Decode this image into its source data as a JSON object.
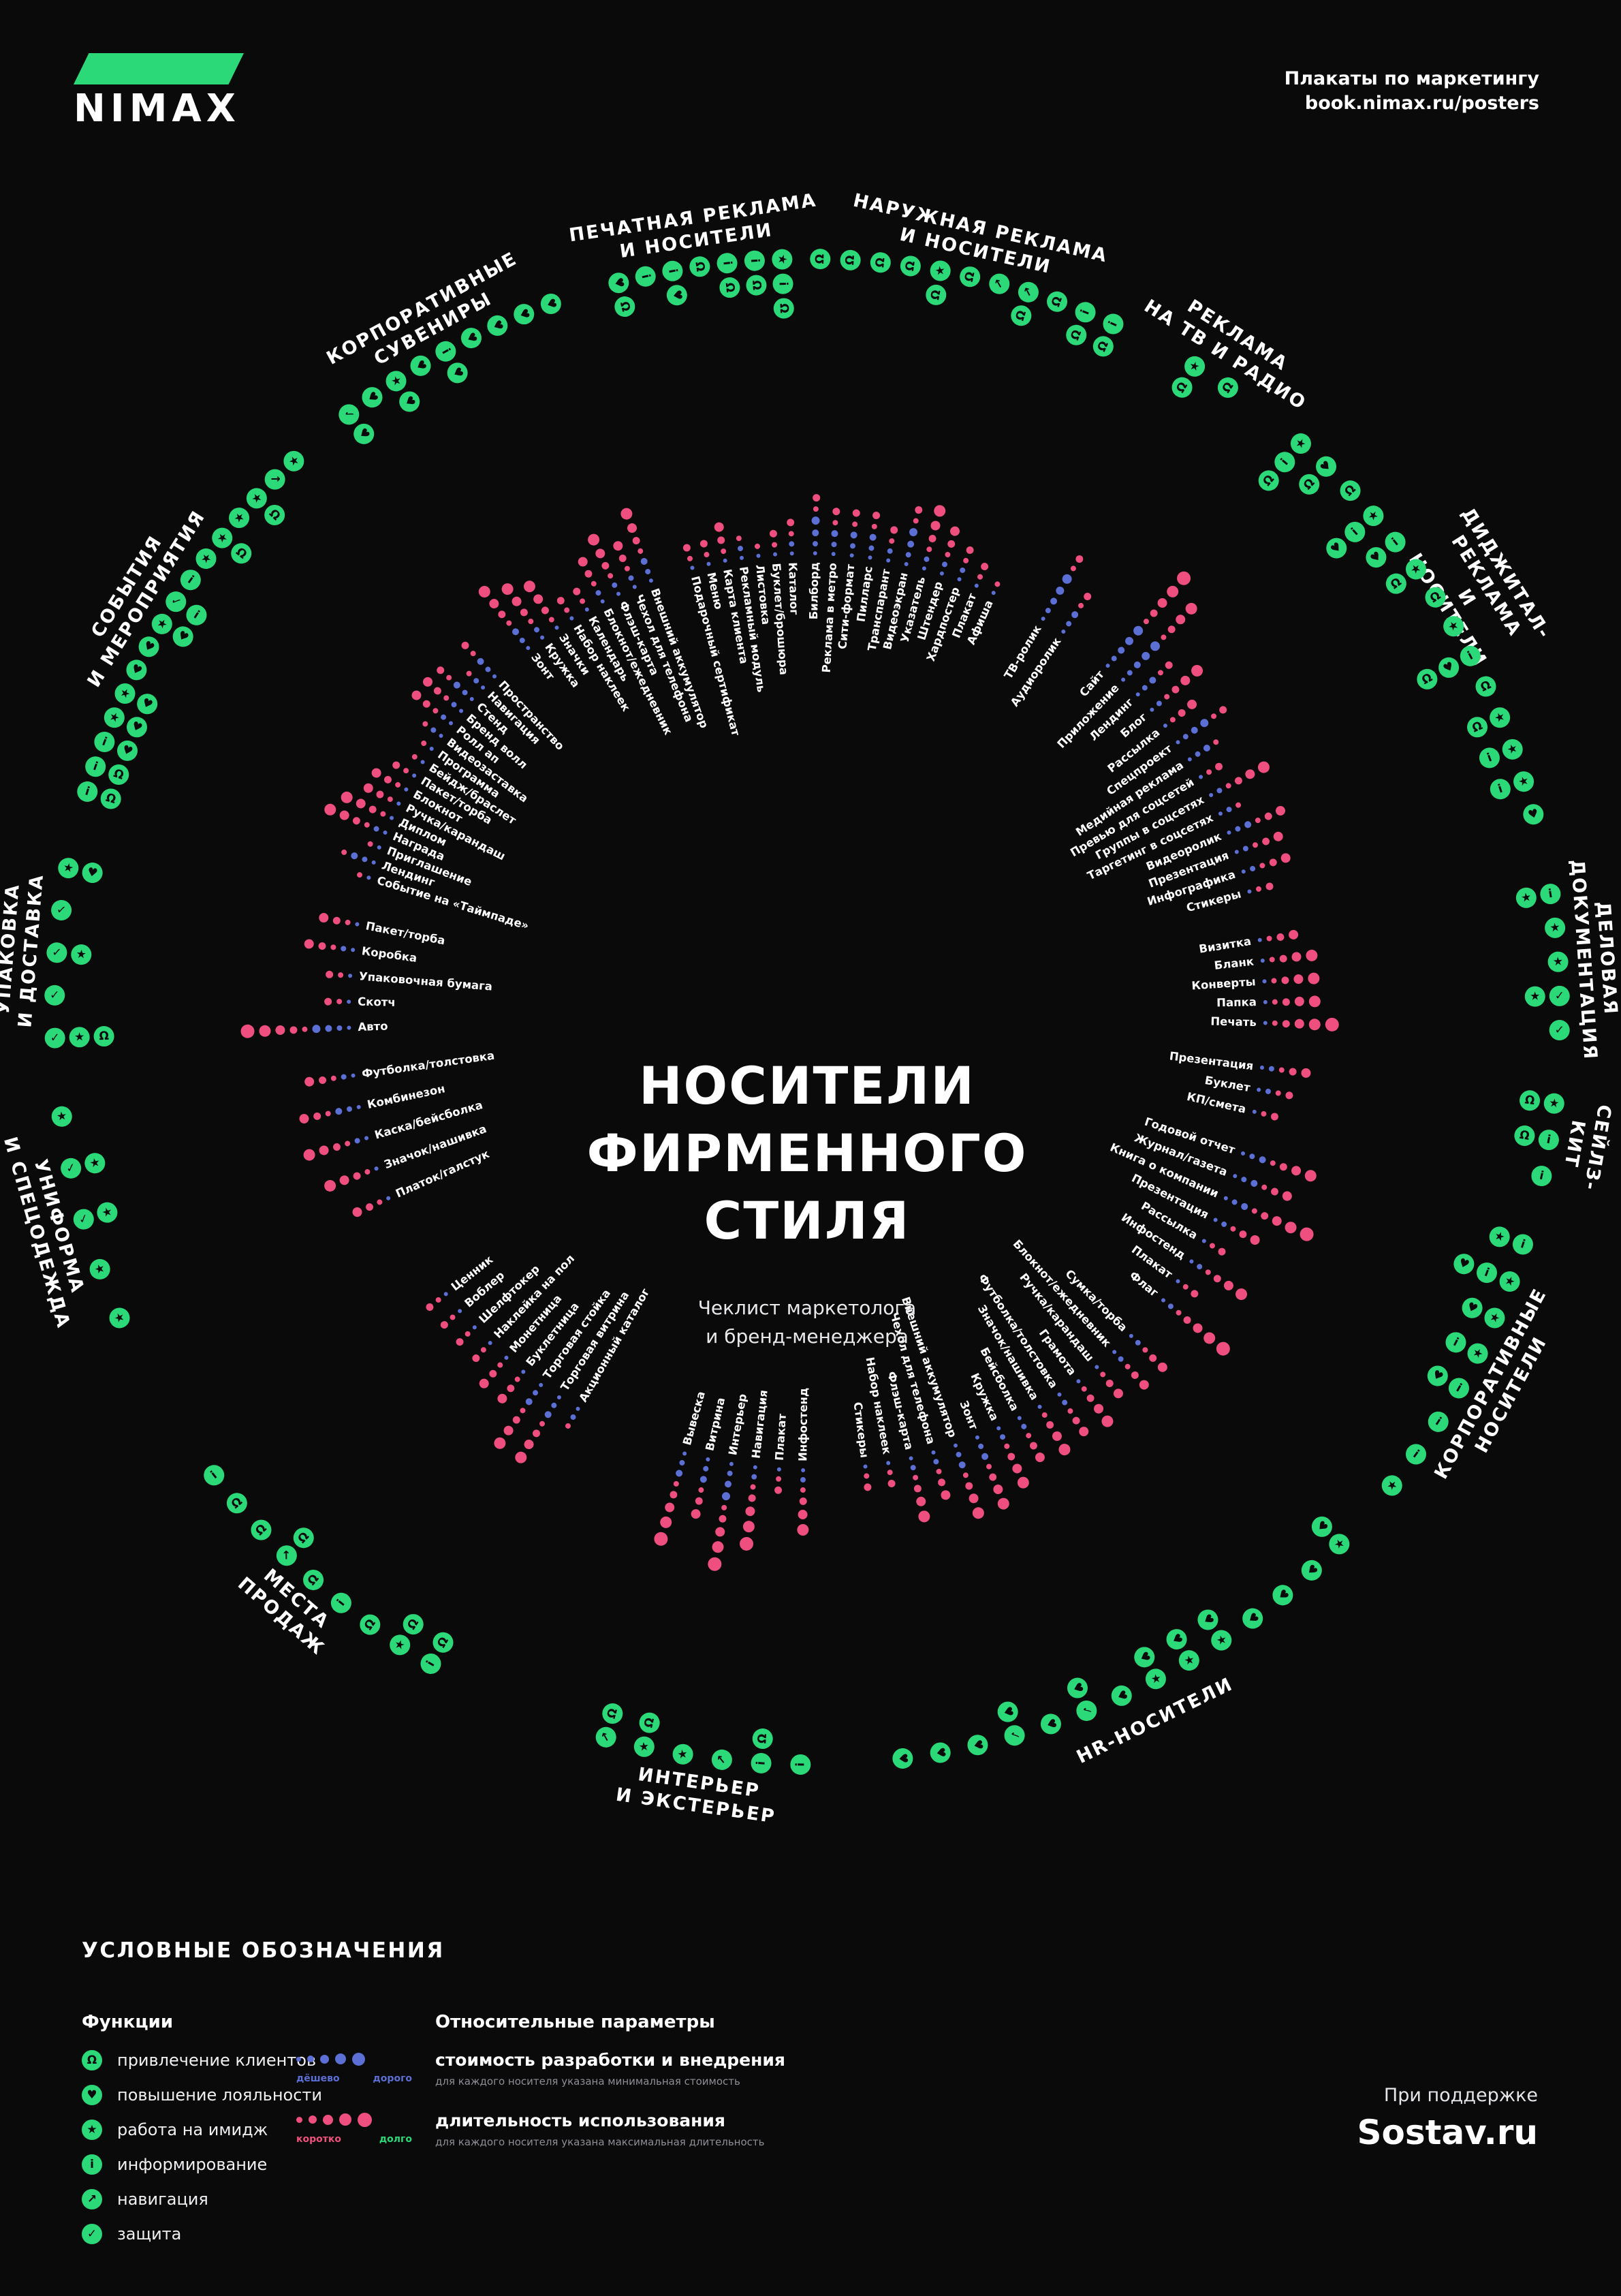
{
  "colors": {
    "green": "#2bd978",
    "blue": "#5b6fd4",
    "pink": "#ee4f7f",
    "bg": "#0a0a0b"
  },
  "header": {
    "logo": "NIMAX",
    "tagline": "Плакаты по маркетингу",
    "url": "book.nimax.ru/posters"
  },
  "center": {
    "title_lines": [
      "НОСИТЕЛИ",
      "ФИРМЕННОГО",
      "СТИЛЯ"
    ],
    "subtitle": "Чеклист маркетолога\nи бренд-менеджера"
  },
  "functions": {
    "A": {
      "glyph": "Ω",
      "label": "привлечение клиентов",
      "name": "attract-clients-magnet-icon"
    },
    "L": {
      "glyph": "♥",
      "label": "повышение лояльности",
      "name": "loyalty-heart-icon"
    },
    "I": {
      "glyph": "★",
      "label": "работа на имидж",
      "name": "image-star-icon"
    },
    "N": {
      "glyph": "i",
      "label": "информирование",
      "name": "info-icon"
    },
    "V": {
      "glyph": "↗",
      "label": "навигация",
      "name": "navigation-arrow-icon"
    },
    "P": {
      "glyph": "✓",
      "label": "защита",
      "name": "protection-check-icon"
    }
  },
  "chart_data": {
    "type": "radial-checklist",
    "title": "НОСИТЕЛИ ФИРМЕННОГО СТИЛЯ",
    "subtitle": "Чеклист маркетолога и бренд-менеджера",
    "item_format": [
      "label",
      "cost_1to5",
      "duration_1to5",
      "function_codes"
    ],
    "categories": [
      {
        "title": "НАРУЖНАЯ РЕКЛАМА\nИ НОСИТЕЛИ",
        "start": 1,
        "step": 2.3,
        "items": [
          [
            "Билборд",
            4,
            2,
            "A"
          ],
          [
            "Реклама в метро",
            3,
            2,
            "A"
          ],
          [
            "Сити-формат",
            3,
            2,
            "A"
          ],
          [
            "Пилларс",
            3,
            2,
            "A"
          ],
          [
            "Транспарант",
            2,
            2,
            "AI"
          ],
          [
            "Видеоэкран",
            4,
            2,
            "A"
          ],
          [
            "Указатель",
            2,
            4,
            "V"
          ],
          [
            "Штендер",
            2,
            3,
            "AV"
          ],
          [
            "Хардпостер",
            2,
            2,
            "A"
          ],
          [
            "Плакат",
            1,
            2,
            "AN"
          ],
          [
            "Афиша",
            1,
            1,
            "AN"
          ]
        ]
      },
      {
        "title": "РЕКЛАМА\nНА ТВ И РАДИО",
        "start": 31,
        "step": 3,
        "items": [
          [
            "ТВ-ролик",
            5,
            2,
            "AI"
          ],
          [
            "Аудиоролик",
            3,
            2,
            "A"
          ]
        ]
      },
      {
        "title": "ДИДЖИТАЛ-РЕКЛАМА\nИ НОСИТЕЛИ",
        "start": 41,
        "step": 2.6,
        "items": [
          [
            "Сайт",
            5,
            5,
            "ANI"
          ],
          [
            "Приложение",
            5,
            4,
            "AL"
          ],
          [
            "Лендинг",
            3,
            2,
            "A"
          ],
          [
            "Блог",
            2,
            4,
            "LNI"
          ],
          [
            "Рассылка",
            1,
            3,
            "LN"
          ],
          [
            "Спецпроект",
            4,
            2,
            "AI"
          ],
          [
            "Медийная реклама",
            3,
            1,
            "A"
          ],
          [
            "Превью для соцсетей",
            1,
            2,
            "I"
          ],
          [
            "Группы в соцсетях",
            2,
            4,
            "ALN"
          ],
          [
            "Таргетинг в соцсетях",
            2,
            1,
            "A"
          ],
          [
            "Видеоролик",
            3,
            3,
            "AI"
          ],
          [
            "Презентация",
            2,
            3,
            "NI"
          ],
          [
            "Инфографика",
            2,
            3,
            "NI"
          ],
          [
            "Стикеры",
            1,
            2,
            "L"
          ]
        ]
      },
      {
        "title": "ДЕЛОВАЯ\nДОКУМЕНТАЦИЯ",
        "start": 81,
        "step": 2.6,
        "items": [
          [
            "Визитка",
            1,
            3,
            "IN"
          ],
          [
            "Бланк",
            1,
            4,
            "I"
          ],
          [
            "Конверты",
            1,
            4,
            "I"
          ],
          [
            "Папка",
            1,
            4,
            "IP"
          ],
          [
            "Печать",
            1,
            5,
            "P"
          ]
        ]
      },
      {
        "title": "СЕЙЛЗ-\nКИТ",
        "start": 97,
        "step": 2.8,
        "items": [
          [
            "Презентация",
            2,
            3,
            "AI"
          ],
          [
            "Буклет",
            2,
            2,
            "AN"
          ],
          [
            "КП/смета",
            1,
            2,
            "N"
          ]
        ]
      },
      {
        "title": "КОРПОРАТИВНЫЕ\nНОСИТЕЛИ",
        "start": 108,
        "step": 3,
        "items": [
          [
            "Годовой отчет",
            3,
            4,
            "IN"
          ],
          [
            "Журнал/газета",
            3,
            3,
            "LNI"
          ],
          [
            "Книга о компании",
            3,
            5,
            "LI"
          ],
          [
            "Презентация",
            2,
            3,
            "NI"
          ],
          [
            "Рассылка",
            1,
            2,
            "LN"
          ],
          [
            "Инфостенд",
            2,
            4,
            "N"
          ],
          [
            "Плакат",
            1,
            2,
            "N"
          ],
          [
            "Флаг",
            2,
            5,
            "I"
          ]
        ]
      },
      {
        "title": "HR-НОСИТЕЛИ",
        "start": 135,
        "step": 2.9,
        "items": [
          [
            "Сумка/торба",
            2,
            3,
            "LI"
          ],
          [
            "Блокнот/ежедневник",
            2,
            3,
            "L"
          ],
          [
            "Ручка/карандаш",
            1,
            3,
            "L"
          ],
          [
            "Грамота",
            1,
            4,
            "L"
          ],
          [
            "Футболка/толстовка",
            2,
            3,
            "LI"
          ],
          [
            "Значок/нашивка",
            1,
            4,
            "LI"
          ],
          [
            "Бейсболка",
            2,
            3,
            "LI"
          ],
          [
            "Кружка",
            2,
            4,
            "L"
          ],
          [
            "Зонт",
            3,
            4,
            "LP"
          ],
          [
            "Внешний аккумулятор",
            3,
            4,
            "L"
          ],
          [
            "Чехол для телефона",
            2,
            3,
            "LP"
          ],
          [
            "Флэш-карта",
            2,
            4,
            "L"
          ],
          [
            "Набор наклеек",
            1,
            2,
            "L"
          ],
          [
            "Стикеры",
            1,
            2,
            "L"
          ]
        ]
      },
      {
        "title": "ИНТЕРЬЕР\nИ ЭКСТЕРЬЕР",
        "start": 180.5,
        "step": 3,
        "items": [
          [
            "Инфостенд",
            2,
            4,
            "N"
          ],
          [
            "Плакат",
            1,
            2,
            "AN"
          ],
          [
            "Навигация",
            2,
            5,
            "V"
          ],
          [
            "Интерьер",
            4,
            5,
            "I"
          ],
          [
            "Витрина",
            3,
            3,
            "AI"
          ],
          [
            "Вывеска",
            3,
            5,
            "AV"
          ]
        ]
      },
      {
        "title": "МЕСТА\nПРОДАЖ",
        "start": 210,
        "step": 2.75,
        "items": [
          [
            "Акционный каталог",
            2,
            1,
            "AN"
          ],
          [
            "Торговая витрина",
            3,
            4,
            "AI"
          ],
          [
            "Торговая стойка",
            3,
            4,
            "A"
          ],
          [
            "Буклетница",
            1,
            3,
            "N"
          ],
          [
            "Монетница",
            1,
            3,
            "A"
          ],
          [
            "Наклейка на пол",
            1,
            2,
            "AV"
          ],
          [
            "Шелфтокер",
            1,
            2,
            "A"
          ],
          [
            "Воблер",
            1,
            2,
            "A"
          ],
          [
            "Ценник",
            1,
            2,
            "N"
          ]
        ]
      },
      {
        "title": "УНИФОРМА\nИ СПЕЦОДЕЖДА",
        "start": 246,
        "step": 4,
        "items": [
          [
            "Платок/галстук",
            1,
            3,
            "I"
          ],
          [
            "Значок/нашивка",
            1,
            4,
            "I"
          ],
          [
            "Каска/бейсболка",
            2,
            4,
            "IP"
          ],
          [
            "Комбинезон",
            3,
            3,
            "IP"
          ],
          [
            "Футболка/толстовка",
            2,
            3,
            "I"
          ]
        ]
      },
      {
        "title": "УПАКОВКА\nИ ДОСТАВКА",
        "start": 268,
        "step": 3.25,
        "items": [
          [
            "Авто",
            4,
            5,
            "AIP"
          ],
          [
            "Скотч",
            1,
            2,
            "P"
          ],
          [
            "Упаковочная бумага",
            1,
            2,
            "IP"
          ],
          [
            "Коробка",
            2,
            3,
            "P"
          ],
          [
            "Пакет/торба",
            1,
            3,
            "LI"
          ]
        ]
      },
      {
        "title": "СОБЫТИЯ\nИ МЕРОПРИЯТИЯ",
        "start": 287,
        "step": 2,
        "items": [
          [
            "Событие на «Таймпаде»",
            1,
            1,
            "AN"
          ],
          [
            "Лендинг",
            3,
            1,
            "AN"
          ],
          [
            "Приглашение",
            1,
            1,
            "LN"
          ],
          [
            "Награда",
            2,
            4,
            "LI"
          ],
          [
            "Диплом",
            1,
            4,
            "LI"
          ],
          [
            "Ручка/карандаш",
            1,
            3,
            "L"
          ],
          [
            "Блокнот",
            1,
            3,
            "L"
          ],
          [
            "Пакет/торба",
            1,
            2,
            "LI"
          ],
          [
            "Бейдж/браслет",
            1,
            1,
            "NP"
          ],
          [
            "Программа",
            1,
            1,
            "N"
          ],
          [
            "Видеозаставка",
            2,
            1,
            "I"
          ],
          [
            "Ролл ап",
            2,
            3,
            "AI"
          ],
          [
            "Бренд волл",
            2,
            3,
            "I"
          ],
          [
            "Стенд",
            3,
            2,
            "AI"
          ],
          [
            "Навигация",
            2,
            1,
            "V"
          ],
          [
            "Пространство",
            3,
            2,
            "I"
          ]
        ]
      },
      {
        "title": "КОРПОРАТИВНЫЕ\nСУВЕНИРЫ",
        "start": 322.5,
        "step": 2.2,
        "items": [
          [
            "Зонт",
            3,
            4,
            "LP"
          ],
          [
            "Кружка",
            2,
            4,
            "L"
          ],
          [
            "Значки",
            1,
            4,
            "LI"
          ],
          [
            "Набор наклеек",
            1,
            2,
            "L"
          ],
          [
            "Календарь",
            1,
            2,
            "LN"
          ],
          [
            "Блокнот/ежедневник",
            2,
            3,
            "L"
          ],
          [
            "Флэш-карта",
            2,
            4,
            "L"
          ],
          [
            "Чехол для телефона",
            2,
            3,
            "L"
          ],
          [
            "Внешний аккумулятор",
            3,
            4,
            "L"
          ]
        ]
      },
      {
        "title": "ПЕЧАТНАЯ РЕКЛАМА\nИ НОСИТЕЛИ",
        "start": 345.5,
        "step": 2.1,
        "items": [
          [
            "Подарочный сертификат",
            1,
            2,
            "AL"
          ],
          [
            "Меню",
            1,
            2,
            "N"
          ],
          [
            "Карта клиента",
            1,
            3,
            "LN"
          ],
          [
            "Рекламный модуль",
            2,
            1,
            "A"
          ],
          [
            "Листовка",
            1,
            1,
            "AN"
          ],
          [
            "Буклет/брошюра",
            1,
            2,
            "AN"
          ],
          [
            "Каталог",
            2,
            2,
            "ANI"
          ]
        ]
      }
    ]
  },
  "legend": {
    "heading": "УСЛОВНЫЕ ОБОЗНАЧЕНИЯ",
    "functions_heading": "Функции",
    "functions_order": [
      "A",
      "L",
      "I",
      "N",
      "V",
      "P"
    ],
    "params_heading": "Относительные параметры",
    "params": [
      {
        "color": "blue",
        "min": "дёшево",
        "min_class": "lbl-blue",
        "max": "дорого",
        "max_class": "lbl-blue",
        "label": "стоимость разработки и внедрения",
        "note": "для каждого носителя указана минимальная стоимость"
      },
      {
        "color": "pink",
        "min": "коротко",
        "min_class": "lbl-pink",
        "max": "долго",
        "max_class": "lbl-green",
        "label": "длительность использования",
        "note": "для каждого носителя указана максимальная длительность"
      }
    ]
  },
  "footer": {
    "support": "При поддержке",
    "brand": "Sostav.ru"
  }
}
